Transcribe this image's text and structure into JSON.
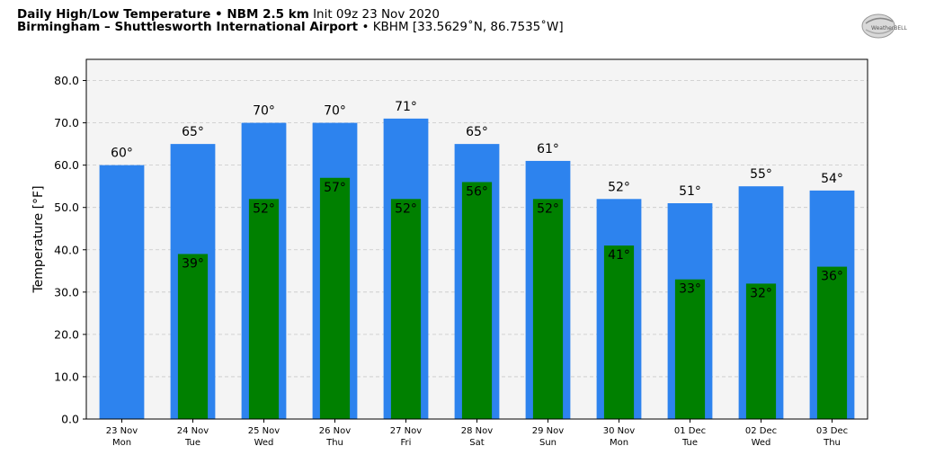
{
  "header": {
    "title_bold": "Daily High/Low Temperature • NBM 2.5 km",
    "title_init": "Init 09z 23 Nov 2020",
    "location_bold": "Birmingham – Shuttlesworth International Airport",
    "location_detail": "• KBHM [33.5629˚N, 86.7535˚W]",
    "logo_text": "WeatherBELL"
  },
  "colors": {
    "high": "#2d83ee",
    "low": "#008000",
    "plot_bg": "#f4f4f4",
    "grid": "#c8c8c8"
  },
  "chart_data": {
    "type": "bar",
    "title": "Daily High/Low Temperature • NBM 2.5 km",
    "xlabel": "",
    "ylabel": "Temperature [°F]",
    "ylim": [
      0,
      85
    ],
    "yticks": [
      0,
      10,
      20,
      30,
      40,
      50,
      60,
      70,
      80
    ],
    "ytick_labels": [
      "0.0",
      "10.0",
      "20.0",
      "30.0",
      "40.0",
      "50.0",
      "60.0",
      "70.0",
      "80.0"
    ],
    "grid": true,
    "categories": [
      {
        "date": "23 Nov",
        "day": "Mon"
      },
      {
        "date": "24 Nov",
        "day": "Tue"
      },
      {
        "date": "25 Nov",
        "day": "Wed"
      },
      {
        "date": "26 Nov",
        "day": "Thu"
      },
      {
        "date": "27 Nov",
        "day": "Fri"
      },
      {
        "date": "28 Nov",
        "day": "Sat"
      },
      {
        "date": "29 Nov",
        "day": "Sun"
      },
      {
        "date": "30 Nov",
        "day": "Mon"
      },
      {
        "date": "01 Dec",
        "day": "Tue"
      },
      {
        "date": "02 Dec",
        "day": "Wed"
      },
      {
        "date": "03 Dec",
        "day": "Thu"
      }
    ],
    "series": [
      {
        "key": "high",
        "values": [
          60,
          65,
          70,
          70,
          71,
          65,
          61,
          52,
          51,
          55,
          54
        ],
        "labels": [
          "60°",
          "65°",
          "70°",
          "70°",
          "71°",
          "65°",
          "61°",
          "52°",
          "51°",
          "55°",
          "54°"
        ]
      },
      {
        "key": "low",
        "values": [
          null,
          39,
          52,
          57,
          52,
          56,
          52,
          41,
          33,
          32,
          36
        ],
        "labels": [
          "",
          "39°",
          "52°",
          "57°",
          "52°",
          "56°",
          "52°",
          "41°",
          "33°",
          "32°",
          "36°"
        ]
      }
    ]
  }
}
